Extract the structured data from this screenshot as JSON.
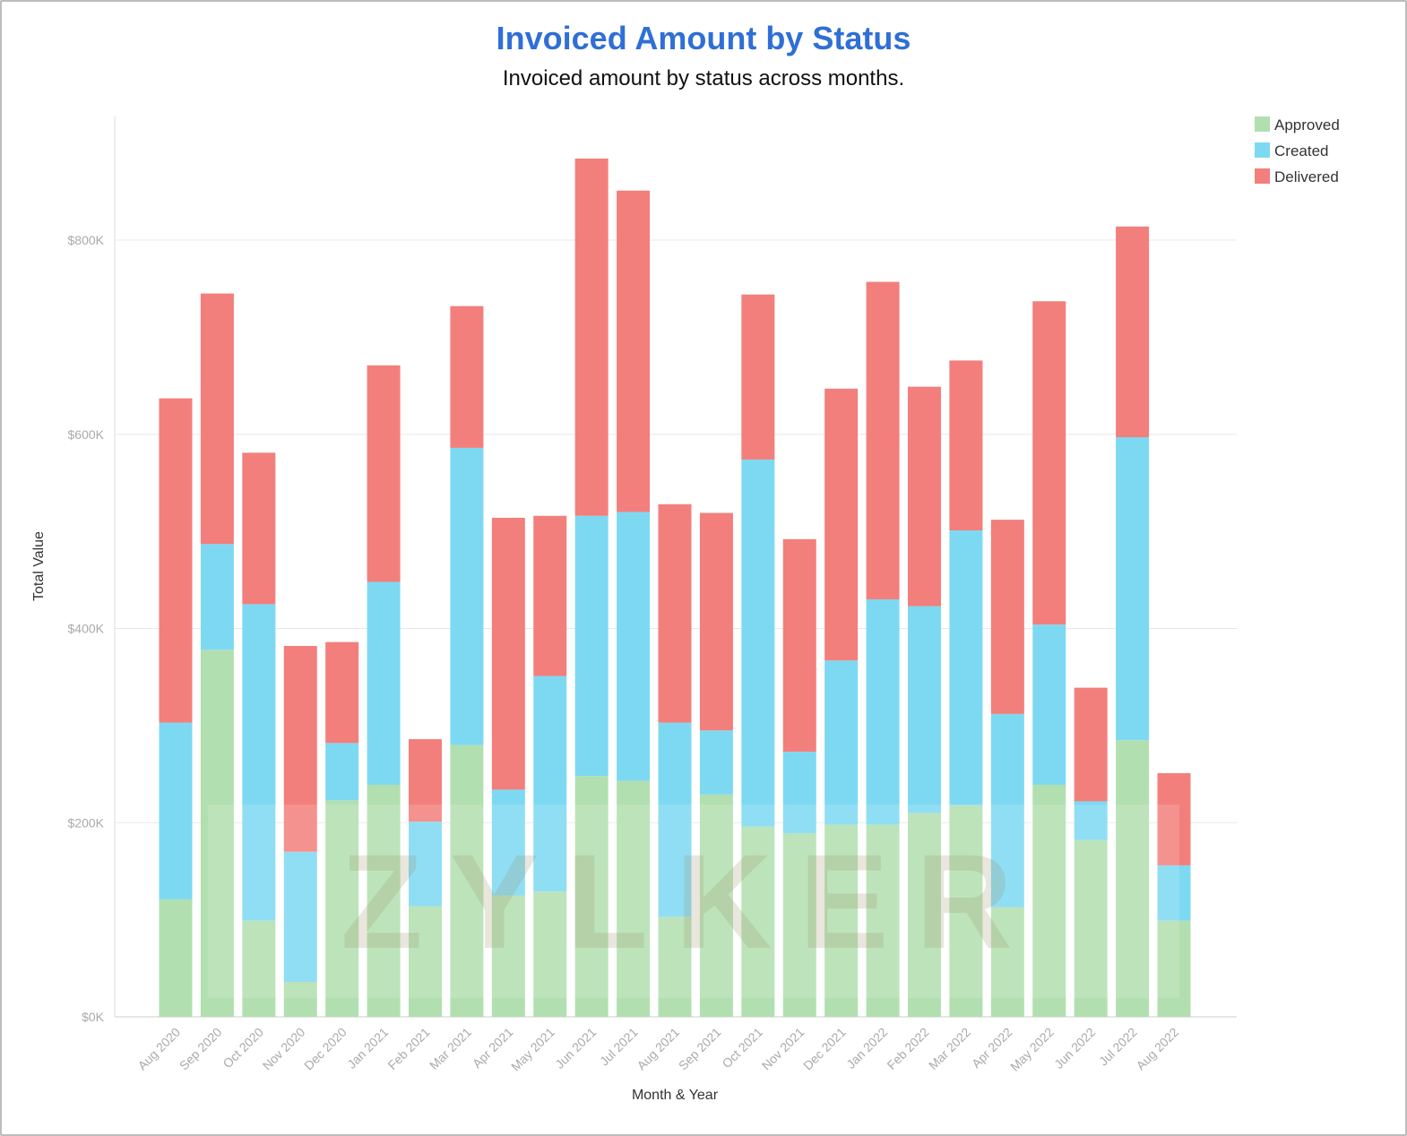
{
  "chart_data": {
    "type": "bar",
    "stacked": true,
    "title": "Invoiced Amount by Status",
    "subtitle": "Invoiced amount by status across months.",
    "xlabel": "Month & Year",
    "ylabel": "Total Value",
    "ylim": [
      0,
      900
    ],
    "yticks": [
      0,
      200,
      400,
      600,
      800
    ],
    "ytick_labels": [
      "$0K",
      "$200K",
      "$400K",
      "$600K",
      "$800K"
    ],
    "grid": true,
    "legend": "top-right",
    "categories": [
      "Aug 2020",
      "Sep 2020",
      "Oct 2020",
      "Nov 2020",
      "Dec 2020",
      "Jan 2021",
      "Feb 2021",
      "Mar 2021",
      "Apr 2021",
      "May 2021",
      "Jun 2021",
      "Jul 2021",
      "Aug 2021",
      "Sep 2021",
      "Oct 2021",
      "Nov 2021",
      "Dec 2021",
      "Jan 2022",
      "Feb 2022",
      "Mar 2022",
      "Apr 2022",
      "May 2022",
      "Jun 2022",
      "Jul 2022",
      "Aug 2022"
    ],
    "series": [
      {
        "name": "Approved",
        "color": "#b2dfb0",
        "values": [
          121,
          378,
          99,
          36,
          223,
          239,
          114,
          280,
          125,
          129,
          248,
          243,
          103,
          229,
          196,
          189,
          198,
          198,
          210,
          218,
          113,
          239,
          182,
          285,
          99
        ]
      },
      {
        "name": "Created",
        "color": "#7dd9f2",
        "values": [
          182,
          109,
          326,
          134,
          59,
          209,
          87,
          306,
          109,
          222,
          268,
          277,
          200,
          66,
          378,
          84,
          169,
          232,
          213,
          283,
          199,
          165,
          40,
          312,
          57
        ]
      },
      {
        "name": "Delivered",
        "color": "#f27f7c",
        "values": [
          334,
          258,
          156,
          212,
          104,
          223,
          85,
          146,
          280,
          165,
          368,
          331,
          225,
          224,
          170,
          219,
          280,
          327,
          226,
          175,
          200,
          333,
          117,
          217,
          95
        ]
      }
    ],
    "units": "$K",
    "watermark": "ZYLKER"
  }
}
